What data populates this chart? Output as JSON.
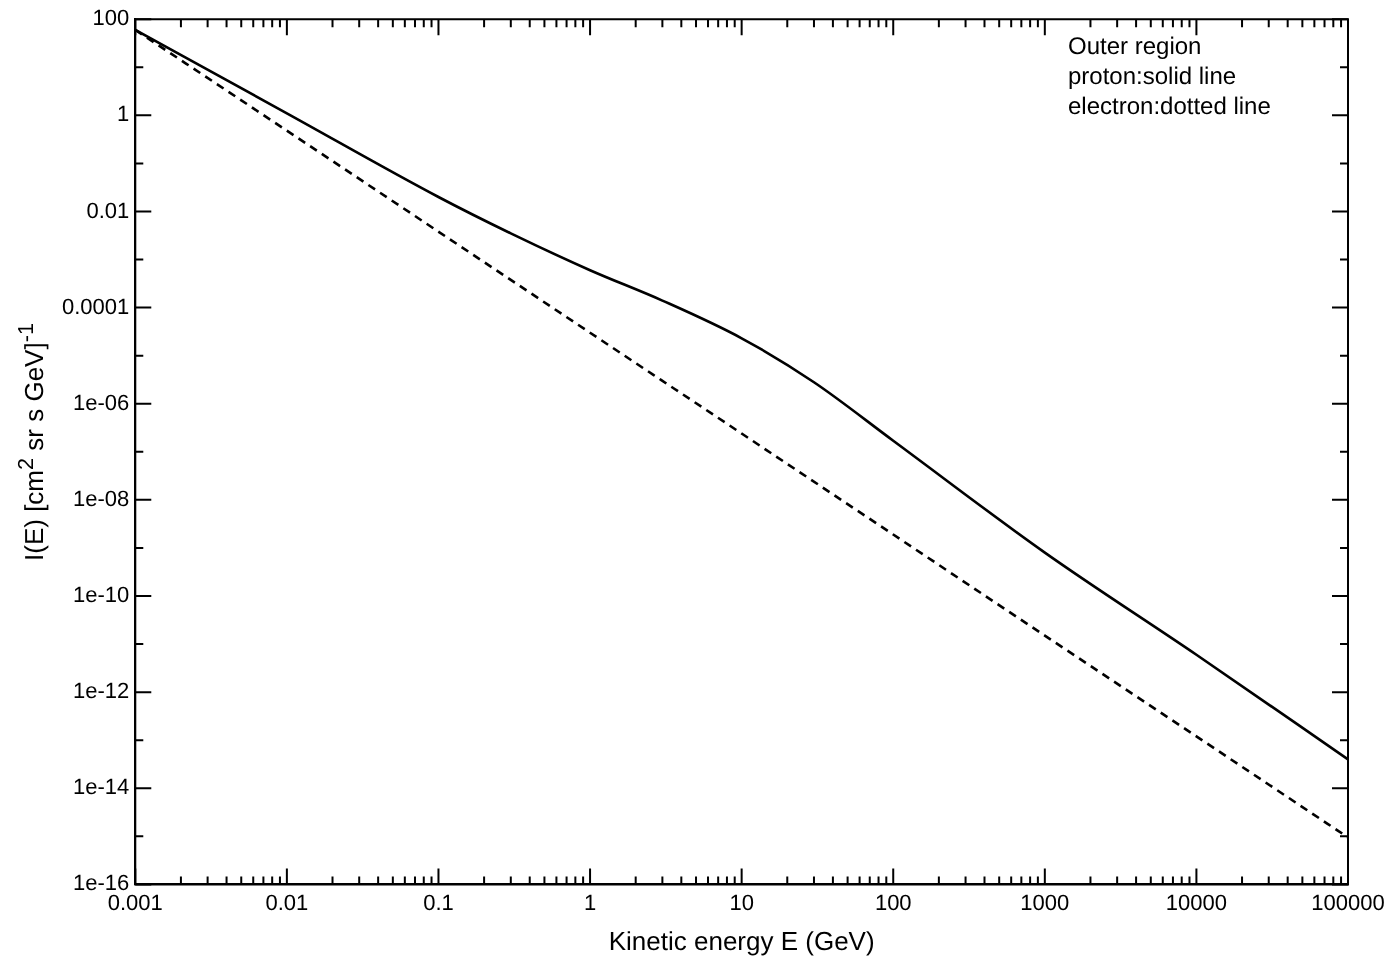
{
  "chart_data": {
    "type": "line",
    "xlabel": "Kinetic energy E (GeV)",
    "ylabel": "I(E) [cm$^{2}$ sr s GeV]$^{-1}$",
    "log": "xy",
    "legend": false,
    "grid": false,
    "marker": "none",
    "xlim": [
      0.001,
      100000
    ],
    "ylim": [
      1e-16,
      100
    ],
    "xticks": [
      {
        "value": 0.001,
        "label": "0.001"
      },
      {
        "value": 0.002,
        "label": null
      },
      {
        "value": 0.003,
        "label": null
      },
      {
        "value": 0.004,
        "label": null
      },
      {
        "value": 0.005,
        "label": null
      },
      {
        "value": 0.006,
        "label": null
      },
      {
        "value": 0.007,
        "label": null
      },
      {
        "value": 0.008,
        "label": null
      },
      {
        "value": 0.009,
        "label": null
      },
      {
        "value": 0.01,
        "label": "0.01"
      },
      {
        "value": 0.02,
        "label": null
      },
      {
        "value": 0.03,
        "label": null
      },
      {
        "value": 0.04,
        "label": null
      },
      {
        "value": 0.05,
        "label": null
      },
      {
        "value": 0.06,
        "label": null
      },
      {
        "value": 0.07,
        "label": null
      },
      {
        "value": 0.08,
        "label": null
      },
      {
        "value": 0.09,
        "label": null
      },
      {
        "value": 0.1,
        "label": "0.1"
      },
      {
        "value": 0.2,
        "label": null
      },
      {
        "value": 0.3,
        "label": null
      },
      {
        "value": 0.4,
        "label": null
      },
      {
        "value": 0.5,
        "label": null
      },
      {
        "value": 0.6,
        "label": null
      },
      {
        "value": 0.7,
        "label": null
      },
      {
        "value": 0.8,
        "label": null
      },
      {
        "value": 0.9,
        "label": null
      },
      1,
      {
        "value": 2,
        "label": null
      },
      {
        "value": 3,
        "label": null
      },
      {
        "value": 4,
        "label": null
      },
      {
        "value": 5,
        "label": null
      },
      {
        "value": 6,
        "label": null
      },
      {
        "value": 7,
        "label": null
      },
      {
        "value": 8,
        "label": null
      },
      {
        "value": 9,
        "label": null
      },
      10,
      {
        "value": 20,
        "label": null
      },
      {
        "value": 30,
        "label": null
      },
      {
        "value": 40,
        "label": null
      },
      {
        "value": 50,
        "label": null
      },
      {
        "value": 60,
        "label": null
      },
      {
        "value": 70,
        "label": null
      },
      {
        "value": 80,
        "label": null
      },
      {
        "value": 90,
        "label": null
      },
      100,
      {
        "value": 200,
        "label": null
      },
      {
        "value": 300,
        "label": null
      },
      {
        "value": 400,
        "label": null
      },
      {
        "value": 500,
        "label": null
      },
      {
        "value": 600,
        "label": null
      },
      {
        "value": 700,
        "label": null
      },
      {
        "value": 800,
        "label": null
      },
      {
        "value": 900,
        "label": null
      },
      1000,
      {
        "value": 2000,
        "label": null
      },
      {
        "value": 3000,
        "label": null
      },
      {
        "value": 4000,
        "label": null
      },
      {
        "value": 5000,
        "label": null
      },
      {
        "value": 6000,
        "label": null
      },
      {
        "value": 7000,
        "label": null
      },
      {
        "value": 8000,
        "label": null
      },
      {
        "value": 9000,
        "label": null
      },
      10000,
      {
        "value": 20000,
        "label": null
      },
      {
        "value": 30000,
        "label": null
      },
      {
        "value": 40000,
        "label": null
      },
      {
        "value": 50000,
        "label": null
      },
      {
        "value": 60000,
        "label": null
      },
      {
        "value": 70000,
        "label": null
      },
      {
        "value": 80000,
        "label": null
      },
      {
        "value": 90000,
        "label": null
      },
      100000
    ],
    "yticks": [
      {
        "value": 1e-16,
        "label": "1e-16"
      },
      {
        "value": 1e-15,
        "label": null
      },
      {
        "value": 1e-14,
        "label": "1e-14"
      },
      {
        "value": 1e-13,
        "label": null
      },
      {
        "value": 1e-12,
        "label": "1e-12"
      },
      {
        "value": 1e-11,
        "label": null
      },
      {
        "value": 1e-10,
        "label": "1e-10"
      },
      {
        "value": 1e-09,
        "label": null
      },
      {
        "value": 1e-08,
        "label": "1e-08"
      },
      {
        "value": 1e-07,
        "label": null
      },
      {
        "value": 1e-06,
        "label": "1e-06"
      },
      {
        "value": 1e-05,
        "label": null
      },
      {
        "value": 0.0001,
        "label": "0.0001"
      },
      {
        "value": 0.001,
        "label": null
      },
      {
        "value": 0.01,
        "label": "0.01"
      },
      {
        "value": 0.1,
        "label": null
      },
      1,
      {
        "value": 10,
        "label": null
      },
      100
    ],
    "annotations": [
      "Outer region",
      "proton:solid line",
      "electron:dotted line"
    ],
    "series": [
      {
        "color": "#000000",
        "line_style": "solid",
        "x": [
          0.001,
          0.01,
          0.1,
          0.3,
          1,
          3,
          10,
          30,
          100,
          1000,
          10000,
          100000
        ],
        "values": [
          60,
          1.1,
          0.02,
          0.0035,
          0.0006,
          0.00014,
          2.3e-05,
          2.8e-06,
          1.7e-07,
          8e-10,
          6e-12,
          4e-14
        ]
      },
      {
        "color": "#000000",
        "line_style": "dashed",
        "x": [
          0.001,
          0.01,
          0.1,
          1,
          10,
          100,
          1000,
          10000,
          100000
        ],
        "values": [
          60,
          0.48,
          0.0038,
          3e-05,
          2.4e-07,
          1.9e-09,
          1.5e-11,
          1.2e-13,
          9.5e-16
        ]
      }
    ]
  }
}
